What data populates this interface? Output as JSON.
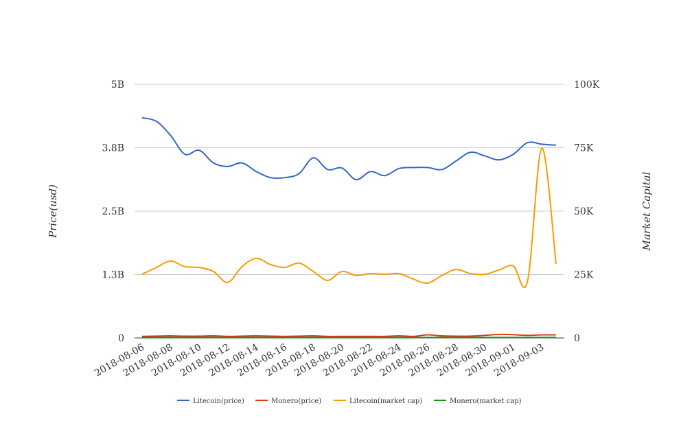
{
  "chart_data": {
    "type": "line",
    "title": "",
    "x": [
      "2018-08-06",
      "2018-08-07",
      "2018-08-08",
      "2018-08-09",
      "2018-08-10",
      "2018-08-11",
      "2018-08-12",
      "2018-08-13",
      "2018-08-14",
      "2018-08-15",
      "2018-08-16",
      "2018-08-17",
      "2018-08-18",
      "2018-08-19",
      "2018-08-20",
      "2018-08-21",
      "2018-08-22",
      "2018-08-23",
      "2018-08-24",
      "2018-08-25",
      "2018-08-26",
      "2018-08-27",
      "2018-08-28",
      "2018-08-29",
      "2018-08-30",
      "2018-08-31",
      "2018-09-01",
      "2018-09-02",
      "2018-09-03",
      "2018-09-04"
    ],
    "x_tick_labels": [
      "2018-08-06",
      "2018-08-08",
      "2018-08-10",
      "2018-08-12",
      "2018-08-14",
      "2018-08-16",
      "2018-08-18",
      "2018-08-20",
      "2018-08-22",
      "2018-08-24",
      "2018-08-26",
      "2018-08-28",
      "2018-08-30",
      "2018-09-01",
      "2018-09-03"
    ],
    "ylabel": "Price(usd)",
    "y2label": "Market Capital",
    "ylim": [
      0,
      5000000000
    ],
    "y2lim": [
      0,
      100000
    ],
    "y_ticks": [
      {
        "v": 0,
        "label": "0"
      },
      {
        "v": 1250000000,
        "label": "1.3B"
      },
      {
        "v": 2500000000,
        "label": "2.5B"
      },
      {
        "v": 3750000000,
        "label": "3.8B"
      },
      {
        "v": 5000000000,
        "label": "5B"
      }
    ],
    "y2_ticks": [
      {
        "v": 0,
        "label": "0"
      },
      {
        "v": 25000,
        "label": "25K"
      },
      {
        "v": 50000,
        "label": "50K"
      },
      {
        "v": 75000,
        "label": "75K"
      },
      {
        "v": 100000,
        "label": "100K"
      }
    ],
    "grid": true,
    "legend_position": "bottom",
    "series": [
      {
        "name": "Litecoin(price)",
        "axis": "left",
        "color": "#3366cc",
        "values": [
          4340000000.0,
          4270000000.0,
          3990000000.0,
          3620000000.0,
          3700000000.0,
          3450000000.0,
          3380000000.0,
          3450000000.0,
          3280000000.0,
          3160000000.0,
          3160000000.0,
          3240000000.0,
          3550000000.0,
          3320000000.0,
          3350000000.0,
          3120000000.0,
          3280000000.0,
          3200000000.0,
          3340000000.0,
          3360000000.0,
          3360000000.0,
          3320000000.0,
          3490000000.0,
          3660000000.0,
          3590000000.0,
          3510000000.0,
          3620000000.0,
          3850000000.0,
          3820000000.0,
          3800000000.0
        ]
      },
      {
        "name": "Monero(price)",
        "axis": "left",
        "color": "#dc3912",
        "values": [
          30000000.0,
          35000000.0,
          40000000.0,
          35000000.0,
          35000000.0,
          40000000.0,
          30000000.0,
          35000000.0,
          40000000.0,
          35000000.0,
          30000000.0,
          35000000.0,
          40000000.0,
          30000000.0,
          30000000.0,
          30000000.0,
          30000000.0,
          30000000.0,
          40000000.0,
          30000000.0,
          60000000.0,
          40000000.0,
          35000000.0,
          35000000.0,
          50000000.0,
          70000000.0,
          65000000.0,
          50000000.0,
          60000000.0,
          60000000.0
        ]
      },
      {
        "name": "Litecoin(market cap)",
        "axis": "right",
        "color": "#ff9900",
        "values": [
          25100,
          27800,
          30300,
          28100,
          27800,
          26200,
          21900,
          28100,
          31400,
          28900,
          27800,
          29500,
          26200,
          22700,
          26200,
          24600,
          25400,
          25100,
          25400,
          23200,
          21600,
          24600,
          27000,
          25400,
          25100,
          26800,
          28400,
          22400,
          74900,
          29200
        ]
      },
      {
        "name": "Monero(market cap)",
        "axis": "right",
        "color": "#109618",
        "values": [
          200,
          200,
          200,
          200,
          200,
          200,
          200,
          200,
          200,
          200,
          200,
          200,
          200,
          200,
          200,
          200,
          200,
          200,
          200,
          200,
          200,
          200,
          200,
          200,
          200,
          200,
          200,
          200,
          200,
          200
        ]
      }
    ]
  }
}
